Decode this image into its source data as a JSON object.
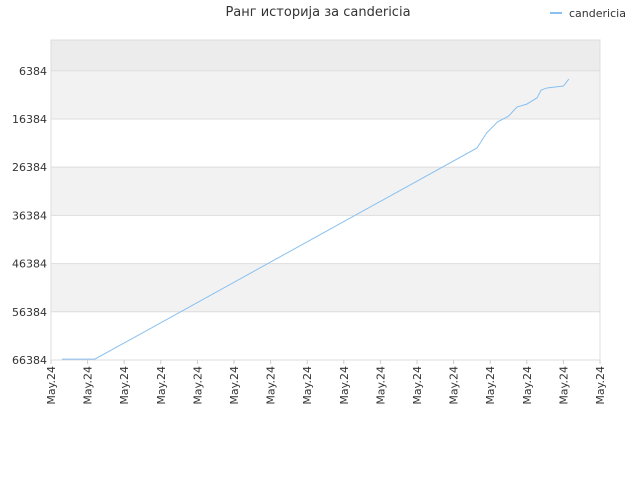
{
  "chart_data": {
    "type": "line",
    "title": "Ранг историја за candericia",
    "series": [
      {
        "name": "candericia",
        "color": "#88c0f0",
        "x": [
          0.3,
          1.2,
          11.64,
          11.9,
          12.2,
          12.5,
          12.73,
          13.0,
          13.28,
          13.39,
          13.55,
          14.0,
          14.15
        ],
        "values": [
          66200,
          66200,
          22400,
          19300,
          17000,
          15800,
          13900,
          13300,
          12000,
          10400,
          9950,
          9550,
          8100
        ]
      }
    ],
    "xlim": [
      0,
      15
    ],
    "xticks": [
      {
        "value": 0,
        "label": "May.24"
      },
      {
        "value": 1,
        "label": "May.24"
      },
      {
        "value": 2,
        "label": "May.24"
      },
      {
        "value": 3,
        "label": "May.24"
      },
      {
        "value": 4,
        "label": "May.24"
      },
      {
        "value": 5,
        "label": "May.24"
      },
      {
        "value": 6,
        "label": "May.24"
      },
      {
        "value": 7,
        "label": "May.24"
      },
      {
        "value": 8,
        "label": "May.24"
      },
      {
        "value": 9,
        "label": "May.24"
      },
      {
        "value": 10,
        "label": "May.24"
      },
      {
        "value": 11,
        "label": "May.24"
      },
      {
        "value": 12,
        "label": "May.24"
      },
      {
        "value": 13,
        "label": "May.24"
      },
      {
        "value": 14,
        "label": "May.24"
      },
      {
        "value": 15,
        "label": "May.24"
      }
    ],
    "ylim": [
      66384,
      0
    ],
    "yticks": [
      6384,
      16384,
      26384,
      36384,
      46384,
      56384,
      66384
    ],
    "grid": true,
    "legend": "top-right"
  }
}
